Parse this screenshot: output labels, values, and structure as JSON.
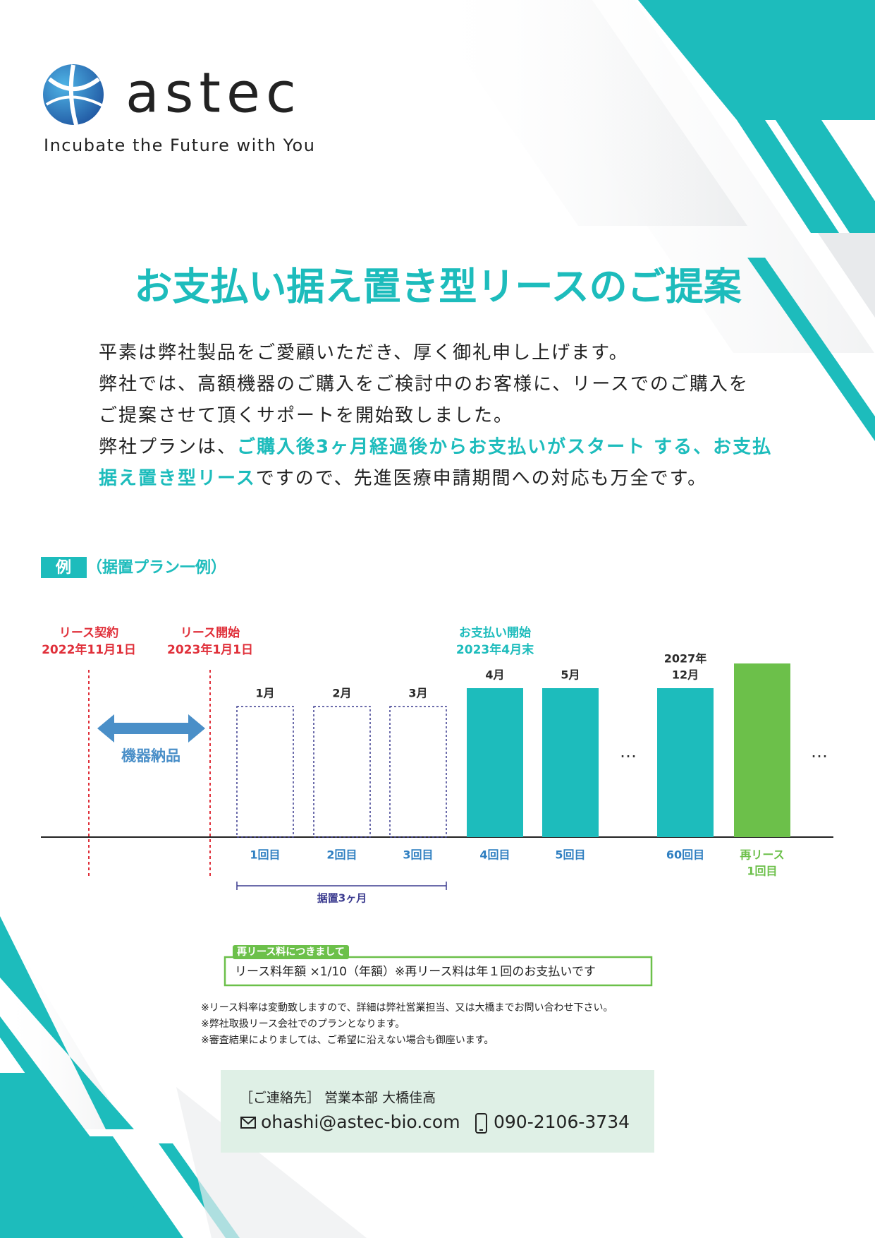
{
  "header": {
    "logo_text": "astec",
    "tagline": "Incubate the Future with You"
  },
  "title": "お支払い据え置き型リースのご提案",
  "intro": {
    "lines": [
      [
        {
          "text": "平素は弊社製品をご愛顧いただき、厚く御礼申し上げます。",
          "highlight": false
        }
      ],
      [
        {
          "text": "弊社では、高額機器のご購入をご検討中のお客様に、リースでのご購入を",
          "highlight": false
        }
      ],
      [
        {
          "text": "ご提案させて頂くサポートを開始致しました。",
          "highlight": false
        }
      ],
      [
        {
          "text": "弊社プランは、",
          "highlight": false
        },
        {
          "text": "ご購入後3ヶ月経過後からお支払いがスタート する、お支払",
          "highlight": true
        }
      ],
      [
        {
          "text": "据え置き型リース",
          "highlight": true
        },
        {
          "text": "ですので、先進医療申請期間への対応も万全です。",
          "highlight": false
        }
      ]
    ]
  },
  "example": {
    "badge": "例",
    "label": "（据置プラン一例）"
  },
  "timeline": {
    "markers": [
      {
        "label": "リース契約",
        "date": "2022年11月1日"
      },
      {
        "label": "リース開始",
        "date": "2023年1月1日"
      }
    ],
    "delivery": "機器納品",
    "payment_start": {
      "label": "お支払い開始",
      "date": "2023年4月末"
    },
    "bars": [
      {
        "top": [
          "1月"
        ],
        "bottom": [
          "1回目"
        ]
      },
      {
        "top": [
          "2月"
        ],
        "bottom": [
          "2回目"
        ]
      },
      {
        "top": [
          "3月"
        ],
        "bottom": [
          "3回目"
        ]
      },
      {
        "top": [
          "4月"
        ],
        "bottom": [
          "4回目"
        ]
      },
      {
        "top": [
          "5月"
        ],
        "bottom": [
          "5回目"
        ]
      },
      {
        "top": [
          "2027年",
          "12月"
        ],
        "bottom": [
          "60回目"
        ]
      },
      {
        "bottom": [
          "再リース",
          "1回目"
        ]
      }
    ],
    "ellipses": [
      "…",
      "…"
    ],
    "deferment": "据置3ヶ月"
  },
  "re_lease": {
    "title": "再リース料につきまして",
    "text": "リース料年額 ×1/10（年額）※再リース料は年１回のお支払いです"
  },
  "notes": [
    "※リース料率は変動致しますので、詳細は弊社営業担当、又は大橋までお問い合わせ下さい。",
    "※弊社取扱リース会社でのプランとなります。",
    "※審査結果によりましては、ご希望に沿えない場合も御座います。"
  ],
  "contact": {
    "label": "［ご連絡先］ 営業本部 大橋佳高",
    "email": "ohashi@astec-bio.com",
    "phone": "090-2106-3734"
  }
}
